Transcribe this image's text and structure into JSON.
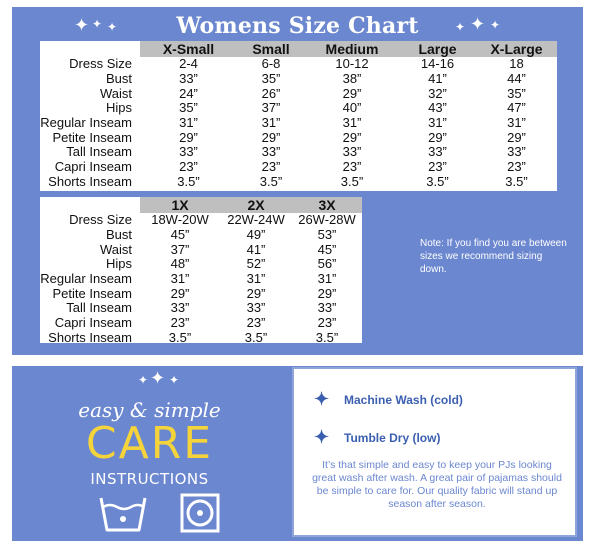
{
  "title": "Womens Size Chart",
  "table1": {
    "columns": [
      "X-Small",
      "Small",
      "Medium",
      "Large",
      "X-Large"
    ],
    "rows": [
      {
        "label": "Dress Size",
        "values": [
          "2-4",
          "6-8",
          "10-12",
          "14-16",
          "18"
        ]
      },
      {
        "label": "Bust",
        "values": [
          "33”",
          "35”",
          "38”",
          "41”",
          "44”"
        ]
      },
      {
        "label": "Waist",
        "values": [
          "24”",
          "26”",
          "29”",
          "32”",
          "35”"
        ]
      },
      {
        "label": "Hips",
        "values": [
          "35”",
          "37”",
          "40”",
          "43”",
          "47”"
        ]
      },
      {
        "label": "Regular Inseam",
        "values": [
          "31”",
          "31”",
          "31”",
          "31”",
          "31”"
        ]
      },
      {
        "label": "Petite Inseam",
        "values": [
          "29”",
          "29”",
          "29”",
          "29”",
          "29”"
        ]
      },
      {
        "label": "Tall Inseam",
        "values": [
          "33”",
          "33”",
          "33”",
          "33”",
          "33”"
        ]
      },
      {
        "label": "Capri Inseam",
        "values": [
          "23”",
          "23”",
          "23”",
          "23”",
          "23”"
        ]
      },
      {
        "label": "Shorts Inseam",
        "values": [
          "3.5”",
          "3.5”",
          "3.5”",
          "3.5”",
          "3.5”"
        ]
      }
    ]
  },
  "table2": {
    "columns": [
      "1X",
      "2X",
      "3X"
    ],
    "rows": [
      {
        "label": "Dress Size",
        "values": [
          "18W-20W",
          "22W-24W",
          "26W-28W"
        ]
      },
      {
        "label": "Bust",
        "values": [
          "45”",
          "49”",
          "53”"
        ]
      },
      {
        "label": "Waist",
        "values": [
          "37”",
          "41”",
          "45”"
        ]
      },
      {
        "label": "Hips",
        "values": [
          "48”",
          "52”",
          "56”"
        ]
      },
      {
        "label": "Regular Inseam",
        "values": [
          "31”",
          "31”",
          "31”"
        ]
      },
      {
        "label": "Petite Inseam",
        "values": [
          "29”",
          "29”",
          "29”"
        ]
      },
      {
        "label": "Tall Inseam",
        "values": [
          "33”",
          "33”",
          "33”"
        ]
      },
      {
        "label": "Capri Inseam",
        "values": [
          "23”",
          "23”",
          "23”"
        ]
      },
      {
        "label": "Shorts Inseam",
        "values": [
          "3.5”",
          "3.5”",
          "3.5”"
        ]
      }
    ]
  },
  "note": "Note: If you find you are between sizes we recommend sizing down.",
  "care": {
    "tagline": "easy & simple",
    "heading": "CARE",
    "subheading": "INSTRUCTIONS",
    "icons": [
      "wash-basin-icon",
      "tumble-dry-icon"
    ],
    "instructions": [
      "Machine Wash (cold)",
      "Tumble Dry (low)"
    ],
    "blurb": "It’s that simple and easy to keep your PJs looking great wash after wash. A great pair of pajamas should be simple to care for. Our quality fabric will stand up season after season."
  },
  "colors": {
    "panel": "#6b87cf",
    "header_gray": "#bfbfbf",
    "care_yellow": "#f5d33a",
    "instruction_blue": "#3b5fb0"
  }
}
